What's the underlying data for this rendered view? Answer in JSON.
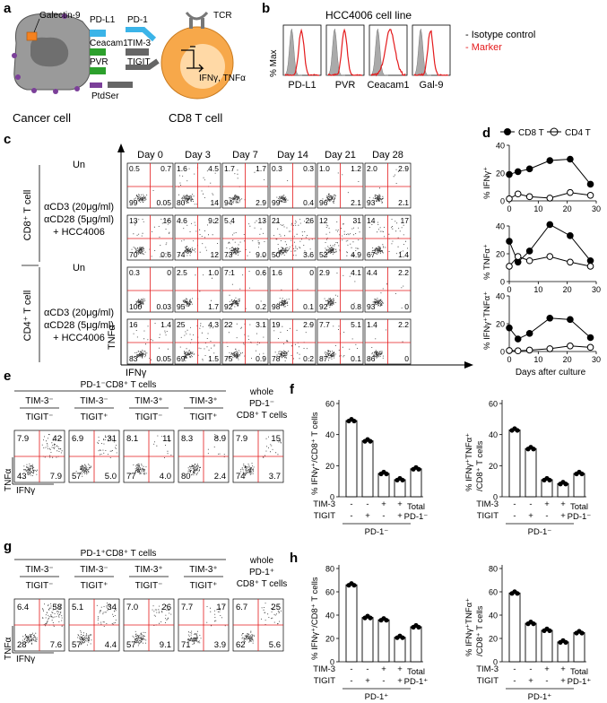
{
  "panel_letters": {
    "a": "a",
    "b": "b",
    "c": "c",
    "d": "d",
    "e": "e",
    "f": "f",
    "g": "g",
    "h": "h"
  },
  "panel_a": {
    "ligands": [
      "Galectin-9",
      "PD-L1",
      "Ceacam1",
      "PVR",
      "PtdSer"
    ],
    "receptors": [
      "PD-1",
      "TIM-3",
      "TIGIT",
      "TCR"
    ],
    "cytokines": "IFNγ, TNFα",
    "cancer_label": "Cancer cell",
    "tcell_label": "CD8 T cell",
    "colors": {
      "galectin": "#f58220",
      "pdl1": "#3bb4e8",
      "ceacam1": "#2ca02c",
      "pvr": "#2ca02c",
      "ptdser": "#7b3f99",
      "tcell": "#f7a84a",
      "cancer": "#999999"
    }
  },
  "panel_b": {
    "title": "HCC4006 cell line",
    "ylabel": "% Max",
    "markers": [
      "PD-L1",
      "PVR",
      "Ceacam1",
      "Gal-9"
    ],
    "legend": [
      "- Isotype control",
      "- Marker"
    ],
    "colors": {
      "isotype": "#aaaaaa",
      "marker": "#e41a1c"
    }
  },
  "panel_c": {
    "days": [
      "Day 0",
      "Day 3",
      "Day 7",
      "Day 14",
      "Day 21",
      "Day 28"
    ],
    "groups": [
      "CD8⁺ T cell",
      "CD4⁺ T cell"
    ],
    "conditions": [
      "Un",
      "αCD3 (20μg/ml)",
      "αCD28 (5μg/ml)",
      "+ HCC4006"
    ],
    "xlabel": "IFNγ",
    "ylabel": "TNFα",
    "quadrants": [
      [
        [
          "0.5",
          "0.7",
          "99",
          "0.05"
        ],
        [
          "1.6",
          "4.5",
          "80",
          "14"
        ],
        [
          "1.7",
          "1.7",
          "94",
          "2.9"
        ],
        [
          "0.3",
          "0.3",
          "99",
          "0.4"
        ],
        [
          "1.0",
          "1.2",
          "96",
          "2.1"
        ],
        [
          "2.0",
          "2.9",
          "93",
          "2.1"
        ]
      ],
      [
        [
          "13",
          "16",
          "70",
          "0.6"
        ],
        [
          "4.6",
          "9.2",
          "74",
          "12"
        ],
        [
          "5.4",
          "13",
          "73",
          "9.0"
        ],
        [
          "21",
          "26",
          "50",
          "3.6"
        ],
        [
          "12",
          "31",
          "52",
          "4.9"
        ],
        [
          "14",
          "17",
          "67",
          "1.4"
        ]
      ],
      [
        [
          "0.3",
          "0",
          "100",
          "0.03"
        ],
        [
          "2.5",
          "1.0",
          "95",
          "1.7"
        ],
        [
          "7.1",
          "0.6",
          "92",
          "0.2"
        ],
        [
          "1.6",
          "0",
          "98",
          "0.1"
        ],
        [
          "2.9",
          "4.1",
          "92",
          "0.8"
        ],
        [
          "4.4",
          "2.2",
          "93",
          "0"
        ]
      ],
      [
        [
          "16",
          "1.4",
          "83",
          "0.05"
        ],
        [
          "25",
          "4.3",
          "69",
          "1.5"
        ],
        [
          "22",
          "3.1",
          "75",
          "0.9"
        ],
        [
          "19",
          "2.9",
          "78",
          "0.2"
        ],
        [
          "7.7",
          "5.1",
          "87",
          "0.1"
        ],
        [
          "1.4",
          "2.2",
          "86",
          "0"
        ]
      ]
    ]
  },
  "panel_d": {
    "legend": [
      "CD8 T",
      "CD4 T"
    ],
    "ylabels": [
      "% IFNγ⁺",
      "% TNFα⁺",
      "% IFNγ⁺TNFα⁺"
    ],
    "xlabel": "Days after culture",
    "xticks": [
      "0",
      "10",
      "20",
      "30"
    ],
    "yticks": [
      "0",
      "20",
      "40"
    ]
  },
  "chart_data": [
    {
      "type": "line",
      "ylabel": "% IFNγ⁺",
      "xlabel": "Days after culture",
      "ylim": [
        0,
        40
      ],
      "xlim": [
        0,
        30
      ],
      "x": [
        0,
        3,
        7,
        14,
        21,
        28
      ],
      "series": [
        {
          "name": "CD8 T",
          "values": [
            19,
            21,
            23,
            29,
            30,
            12
          ]
        },
        {
          "name": "CD4 T",
          "values": [
            1.5,
            5,
            3,
            2,
            6,
            4
          ]
        }
      ]
    },
    {
      "type": "line",
      "ylabel": "% TNFα⁺",
      "xlabel": "Days after culture",
      "ylim": [
        0,
        40
      ],
      "xlim": [
        0,
        30
      ],
      "x": [
        0,
        3,
        7,
        14,
        21,
        28
      ],
      "series": [
        {
          "name": "CD8 T",
          "values": [
            29,
            14,
            22,
            41,
            33,
            15
          ]
        },
        {
          "name": "CD4 T",
          "values": [
            11,
            18,
            15,
            18,
            14,
            11
          ]
        }
      ]
    },
    {
      "type": "line",
      "ylabel": "% IFNγ⁺TNFα⁺",
      "xlabel": "Days after culture",
      "ylim": [
        0,
        40
      ],
      "xlim": [
        0,
        30
      ],
      "x": [
        0,
        3,
        7,
        14,
        21,
        28
      ],
      "series": [
        {
          "name": "CD8 T",
          "values": [
            17,
            9,
            13,
            24,
            23,
            10
          ]
        },
        {
          "name": "CD4 T",
          "values": [
            0.7,
            0.5,
            1,
            2,
            4,
            3
          ]
        }
      ]
    },
    {
      "type": "bar",
      "ylabel": "% IFNγ⁺/CD8⁺ T cells",
      "ylim": [
        0,
        60
      ],
      "categories": [
        "TIM-3⁻TIGIT⁻",
        "TIM-3⁻TIGIT⁺",
        "TIM-3⁺TIGIT⁻",
        "TIM-3⁺TIGIT⁺",
        "Total PD-1⁻"
      ],
      "values": [
        49,
        36,
        15,
        11,
        18
      ]
    },
    {
      "type": "bar",
      "ylabel": "% IFNγ⁺TNFα⁺/CD8⁺ T cells",
      "ylim": [
        0,
        60
      ],
      "categories": [
        "TIM-3⁻TIGIT⁻",
        "TIM-3⁻TIGIT⁺",
        "TIM-3⁺TIGIT⁻",
        "TIM-3⁺TIGIT⁺",
        "Total PD-1⁻"
      ],
      "values": [
        43,
        31,
        11,
        8.5,
        15
      ]
    },
    {
      "type": "bar",
      "ylabel": "% IFNγ⁺/CD8⁺ T cells",
      "ylim": [
        0,
        80
      ],
      "categories": [
        "TIM-3⁻TIGIT⁻",
        "TIM-3⁻TIGIT⁺",
        "TIM-3⁺TIGIT⁻",
        "TIM-3⁺TIGIT⁺",
        "Total PD-1⁺"
      ],
      "values": [
        66,
        38,
        36,
        21,
        30
      ]
    },
    {
      "type": "bar",
      "ylabel": "% IFNγ⁺TNFα⁺/CD8⁺ T cells",
      "ylim": [
        0,
        80
      ],
      "categories": [
        "TIM-3⁻TIGIT⁻",
        "TIM-3⁻TIGIT⁺",
        "TIM-3⁺TIGIT⁻",
        "TIM-3⁺TIGIT⁺",
        "Total PD-1⁺"
      ],
      "values": [
        59,
        33,
        27,
        17,
        25
      ]
    }
  ],
  "panel_e": {
    "header": "PD-1⁻CD8⁺ T cells",
    "whole": [
      "whole",
      "PD-1⁻",
      "CD8⁺ T cells"
    ],
    "cols": [
      [
        "TIM-3⁻",
        "TIGIT⁻"
      ],
      [
        "TIM-3⁻",
        "TIGIT⁺"
      ],
      [
        "TIM-3⁺",
        "TIGIT⁻"
      ],
      [
        "TIM-3⁺",
        "TIGIT⁺"
      ]
    ],
    "quadrants": [
      [
        "7.9",
        "42",
        "43",
        "7.9"
      ],
      [
        "6.9",
        "31",
        "57",
        "5.0"
      ],
      [
        "8.1",
        "11",
        "77",
        "4.0"
      ],
      [
        "8.3",
        "8.9",
        "80",
        "2.4"
      ],
      [
        "7.9",
        "15",
        "74",
        "3.7"
      ]
    ]
  },
  "panel_g": {
    "header": "PD-1⁺CD8⁺ T cells",
    "whole": [
      "whole",
      "PD-1⁺",
      "CD8⁺ T cells"
    ],
    "cols": [
      [
        "TIM-3⁻",
        "TIGIT⁻"
      ],
      [
        "TIM-3⁻",
        "TIGIT⁺"
      ],
      [
        "TIM-3⁺",
        "TIGIT⁻"
      ],
      [
        "TIM-3⁺",
        "TIGIT⁺"
      ]
    ],
    "quadrants": [
      [
        "6.4",
        "58",
        "28",
        "7.6"
      ],
      [
        "5.1",
        "34",
        "57",
        "4.4"
      ],
      [
        "7.0",
        "26",
        "57",
        "9.1"
      ],
      [
        "7.7",
        "17",
        "71",
        "3.9"
      ],
      [
        "6.7",
        "25",
        "62",
        "5.6"
      ]
    ]
  },
  "bars_common": {
    "tim3": "TIM-3",
    "tigit": "TIGIT",
    "total": "Total",
    "tim3_signs": [
      "-",
      "-",
      "+",
      "+"
    ],
    "tigit_signs": [
      "-",
      "+",
      "-",
      "+"
    ],
    "f_group": "PD-1⁻",
    "h_group": "PD-1⁺",
    "f_yticks": [
      "0",
      "20",
      "40",
      "60"
    ],
    "h_yticks": [
      "0",
      "20",
      "40",
      "60",
      "80"
    ],
    "ylabels": [
      "% IFNγ⁺/CD8⁺ T cells",
      "% IFNγ⁺TNFα⁺",
      "/CD8⁺ T cells"
    ]
  }
}
